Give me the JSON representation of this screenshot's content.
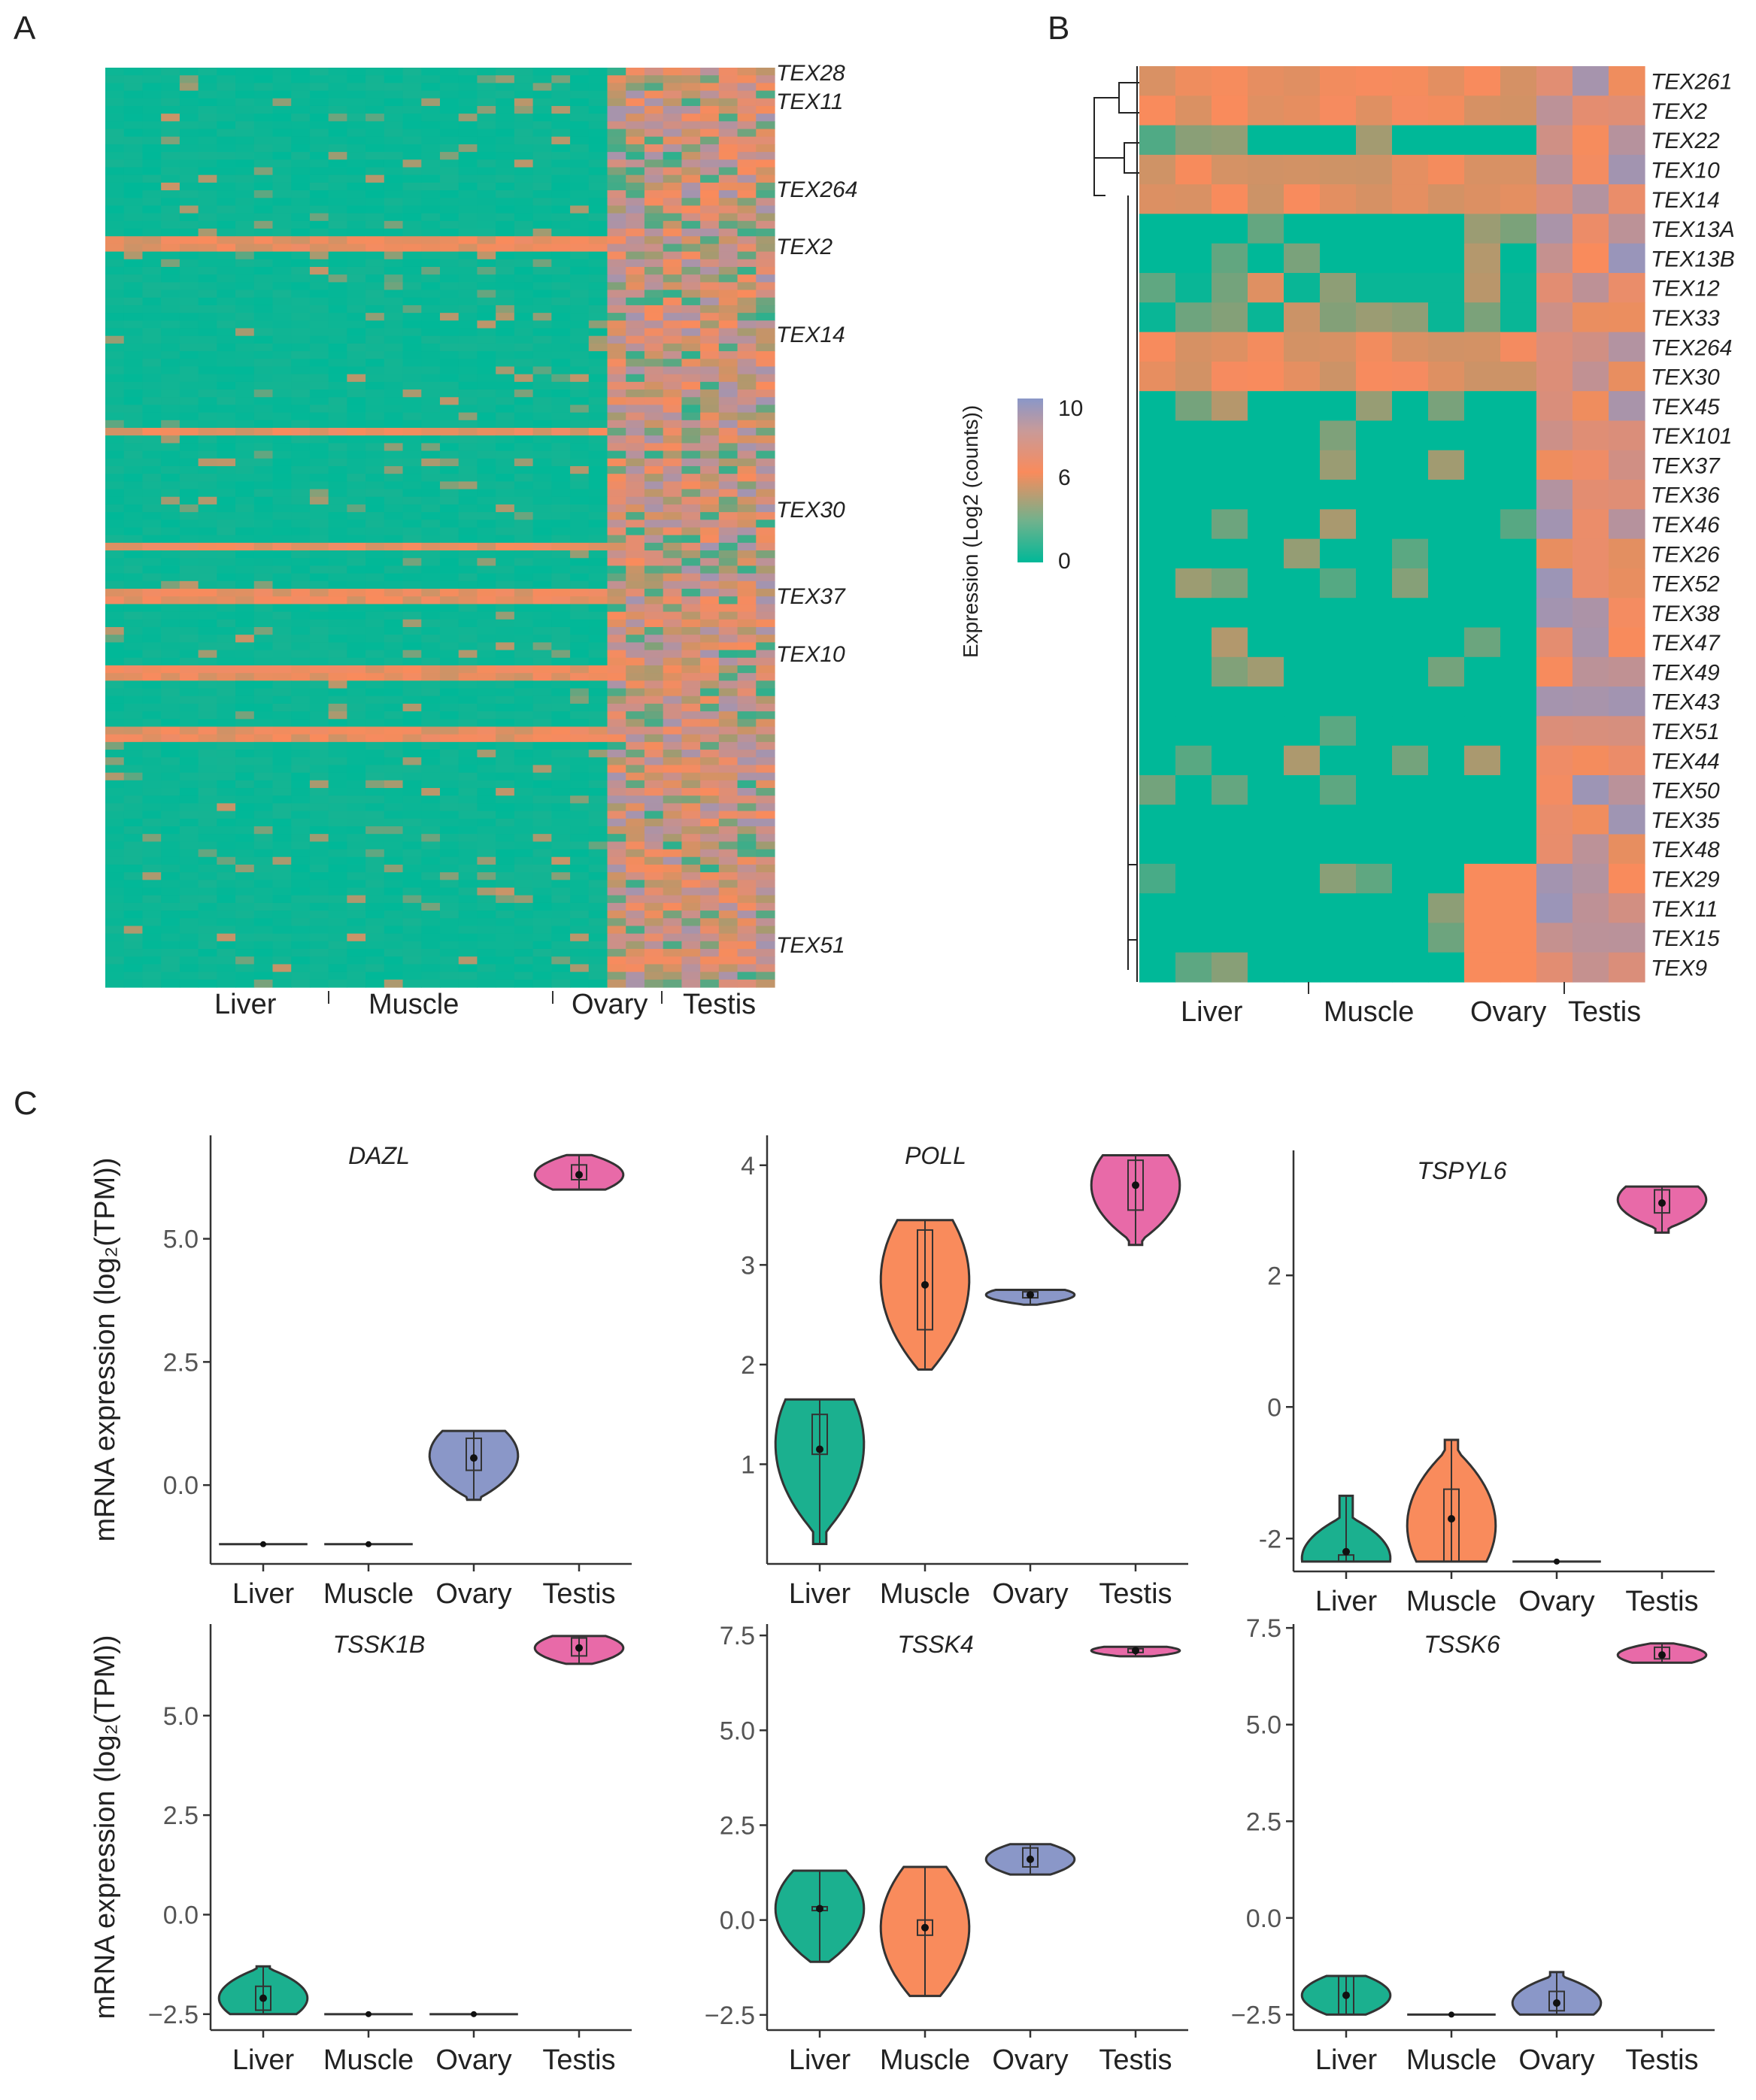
{
  "colors": {
    "low": "#00b898",
    "mid": "#f98b5c",
    "high": "#8a97c8",
    "liver": "#1bb08f",
    "muscle": "#f98b5c",
    "ovary": "#8a97c8",
    "testis": "#e86aa8",
    "axis": "#333333"
  },
  "panel_labels": [
    "A",
    "B",
    "C"
  ],
  "heatmapA": {
    "tissues": [
      "Liver",
      "Muscle",
      "Ovary",
      "Testis"
    ],
    "gene_labels": [
      "TEX28",
      "TEX11",
      "TEX264",
      "TEX2",
      "TEX14",
      "TEX30",
      "TEX37",
      "TEX10",
      "TEX51"
    ]
  },
  "legend": {
    "title": "Expression (Log2 (counts))",
    "ticks": [
      "10",
      "6",
      "0"
    ]
  },
  "heatmapB": {
    "tissues": [
      "Liver",
      "Muscle",
      "Ovary",
      "Testis"
    ],
    "genes": [
      "TEX261",
      "TEX2",
      "TEX22",
      "TEX10",
      "TEX14",
      "TEX13A",
      "TEX13B",
      "TEX12",
      "TEX33",
      "TEX264",
      "TEX30",
      "TEX45",
      "TEX101",
      "TEX37",
      "TEX36",
      "TEX46",
      "TEX26",
      "TEX52",
      "TEX38",
      "TEX47",
      "TEX49",
      "TEX43",
      "TEX51",
      "TEX44",
      "TEX50",
      "TEX35",
      "TEX48",
      "TEX29",
      "TEX11",
      "TEX15",
      "TEX9"
    ]
  },
  "chart_data": [
    {
      "type": "violin",
      "title": "DAZL",
      "ylabel": "mRNA expression (log₂(TPM))",
      "categories": [
        "Liver",
        "Muscle",
        "Ovary",
        "Testis"
      ],
      "ylim": [
        -1.6,
        7.1
      ],
      "yticks": [
        0.0,
        2.5,
        5.0
      ],
      "ytick_labels": [
        "0.0",
        "2.5",
        "5.0"
      ],
      "violins": [
        {
          "min": -1.2,
          "max": -1.2,
          "median": -1.2,
          "q1": -1.2,
          "q3": -1.2,
          "mean": -1.2
        },
        {
          "min": -1.2,
          "max": -1.2,
          "median": -1.2,
          "q1": -1.2,
          "q3": -1.2,
          "mean": -1.2
        },
        {
          "min": -0.3,
          "max": 1.1,
          "median": 0.6,
          "q1": 0.3,
          "q3": 0.95,
          "mean": 0.55
        },
        {
          "min": 6.0,
          "max": 6.7,
          "median": 6.3,
          "q1": 6.2,
          "q3": 6.5,
          "mean": 6.3
        }
      ]
    },
    {
      "type": "violin",
      "title": "POLL",
      "ylabel": "",
      "categories": [
        "Liver",
        "Muscle",
        "Ovary",
        "Testis"
      ],
      "ylim": [
        0,
        4.3
      ],
      "yticks": [
        1,
        2,
        3,
        4
      ],
      "ytick_labels": [
        "1",
        "2",
        "3",
        "4"
      ],
      "violins": [
        {
          "min": 0.2,
          "max": 1.65,
          "median": 1.2,
          "q1": 1.1,
          "q3": 1.5,
          "mean": 1.15
        },
        {
          "min": 1.95,
          "max": 3.45,
          "median": 2.85,
          "q1": 2.35,
          "q3": 3.35,
          "mean": 2.8
        },
        {
          "min": 2.6,
          "max": 2.75,
          "median": 2.7,
          "q1": 2.67,
          "q3": 2.73,
          "mean": 2.7
        },
        {
          "min": 3.2,
          "max": 4.1,
          "median": 3.8,
          "q1": 3.55,
          "q3": 4.05,
          "mean": 3.8
        }
      ]
    },
    {
      "type": "violin",
      "title": "TSPYL6",
      "ylabel": "",
      "categories": [
        "Liver",
        "Muscle",
        "Ovary",
        "Testis"
      ],
      "ylim": [
        -2.5,
        3.9
      ],
      "yticks": [
        -2,
        0,
        2
      ],
      "ytick_labels": [
        "-2",
        "0",
        "2"
      ],
      "violins": [
        {
          "min": -2.35,
          "max": -1.35,
          "median": -2.3,
          "q1": -2.35,
          "q3": -2.25,
          "mean": -2.2
        },
        {
          "min": -2.35,
          "max": -0.5,
          "median": -1.8,
          "q1": -2.35,
          "q3": -1.25,
          "mean": -1.7
        },
        {
          "min": -2.35,
          "max": -2.35,
          "median": -2.35,
          "q1": -2.35,
          "q3": -2.35,
          "mean": -2.35
        },
        {
          "min": 2.65,
          "max": 3.35,
          "median": 3.15,
          "q1": 2.95,
          "q3": 3.3,
          "mean": 3.1
        }
      ]
    },
    {
      "type": "violin",
      "title": "TSSK1B",
      "ylabel": "mRNA expression (log₂(TPM))",
      "categories": [
        "Liver",
        "Muscle",
        "Ovary",
        "Testis"
      ],
      "ylim": [
        -2.9,
        7.3
      ],
      "yticks": [
        -2.5,
        0.0,
        2.5,
        5.0
      ],
      "ytick_labels": [
        "−2.5",
        "0.0",
        "2.5",
        "5.0"
      ],
      "violins": [
        {
          "min": -2.5,
          "max": -1.3,
          "median": -2.1,
          "q1": -2.4,
          "q3": -1.8,
          "mean": -2.1
        },
        {
          "min": -2.5,
          "max": -2.5,
          "median": -2.5,
          "q1": -2.5,
          "q3": -2.5,
          "mean": -2.5
        },
        {
          "min": -2.5,
          "max": -2.5,
          "median": -2.5,
          "q1": -2.5,
          "q3": -2.5,
          "mean": -2.5
        },
        {
          "min": 6.3,
          "max": 7.0,
          "median": 6.7,
          "q1": 6.5,
          "q3": 6.95,
          "mean": 6.7
        }
      ]
    },
    {
      "type": "violin",
      "title": "TSSK4",
      "ylabel": "",
      "categories": [
        "Liver",
        "Muscle",
        "Ovary",
        "Testis"
      ],
      "ylim": [
        -2.9,
        7.8
      ],
      "yticks": [
        -2.5,
        0.0,
        2.5,
        5.0,
        7.5
      ],
      "ytick_labels": [
        "−2.5",
        "0.0",
        "2.5",
        "5.0",
        "7.5"
      ],
      "violins": [
        {
          "min": -1.1,
          "max": 1.3,
          "median": 0.3,
          "q1": 0.25,
          "q3": 0.35,
          "mean": 0.3
        },
        {
          "min": -2.0,
          "max": 1.4,
          "median": -0.2,
          "q1": -0.4,
          "q3": 0.0,
          "mean": -0.2
        },
        {
          "min": 1.2,
          "max": 2.0,
          "median": 1.6,
          "q1": 1.4,
          "q3": 1.9,
          "mean": 1.6
        },
        {
          "min": 6.95,
          "max": 7.2,
          "median": 7.1,
          "q1": 7.05,
          "q3": 7.15,
          "mean": 7.1
        }
      ]
    },
    {
      "type": "violin",
      "title": "TSSK6",
      "ylabel": "",
      "categories": [
        "Liver",
        "Muscle",
        "Ovary",
        "Testis"
      ],
      "ylim": [
        -2.9,
        7.6
      ],
      "yticks": [
        -2.5,
        0.0,
        2.5,
        5.0,
        7.5
      ],
      "ytick_labels": [
        "−2.5",
        "0.0",
        "2.5",
        "5.0",
        "7.5"
      ],
      "violins": [
        {
          "min": -2.5,
          "max": -1.5,
          "median": -2.0,
          "q1": -2.5,
          "q3": -1.5,
          "mean": -2.0
        },
        {
          "min": -2.5,
          "max": -2.5,
          "median": -2.5,
          "q1": -2.5,
          "q3": -2.5,
          "mean": -2.5
        },
        {
          "min": -2.5,
          "max": -1.4,
          "median": -2.2,
          "q1": -2.4,
          "q3": -1.9,
          "mean": -2.2
        },
        {
          "min": 6.6,
          "max": 7.1,
          "median": 6.8,
          "q1": 6.7,
          "q3": 7.0,
          "mean": 6.8
        }
      ]
    }
  ]
}
